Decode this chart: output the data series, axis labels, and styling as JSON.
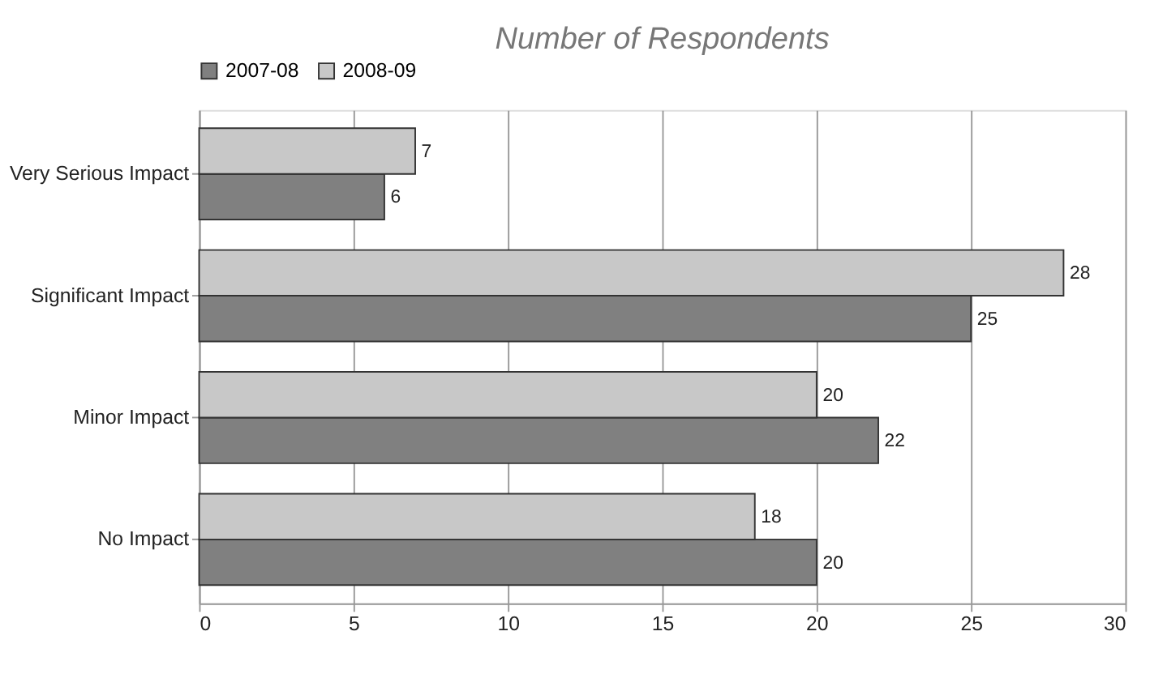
{
  "chart_data": {
    "type": "bar",
    "orientation": "horizontal",
    "title": "Number of Respondents",
    "categories": [
      "Very Serious Impact",
      "Significant Impact",
      "Minor Impact",
      "No Impact"
    ],
    "series": [
      {
        "name": "2007-08",
        "color": "#808080",
        "values": [
          6,
          25,
          22,
          20
        ]
      },
      {
        "name": "2008-09",
        "color": "#c8c8c8",
        "values": [
          7,
          28,
          20,
          18
        ]
      }
    ],
    "xlim": [
      0,
      30
    ],
    "xticks": [
      0,
      5,
      10,
      15,
      20,
      25,
      30
    ],
    "grid": "x",
    "legend": "top",
    "data_labels": true
  }
}
